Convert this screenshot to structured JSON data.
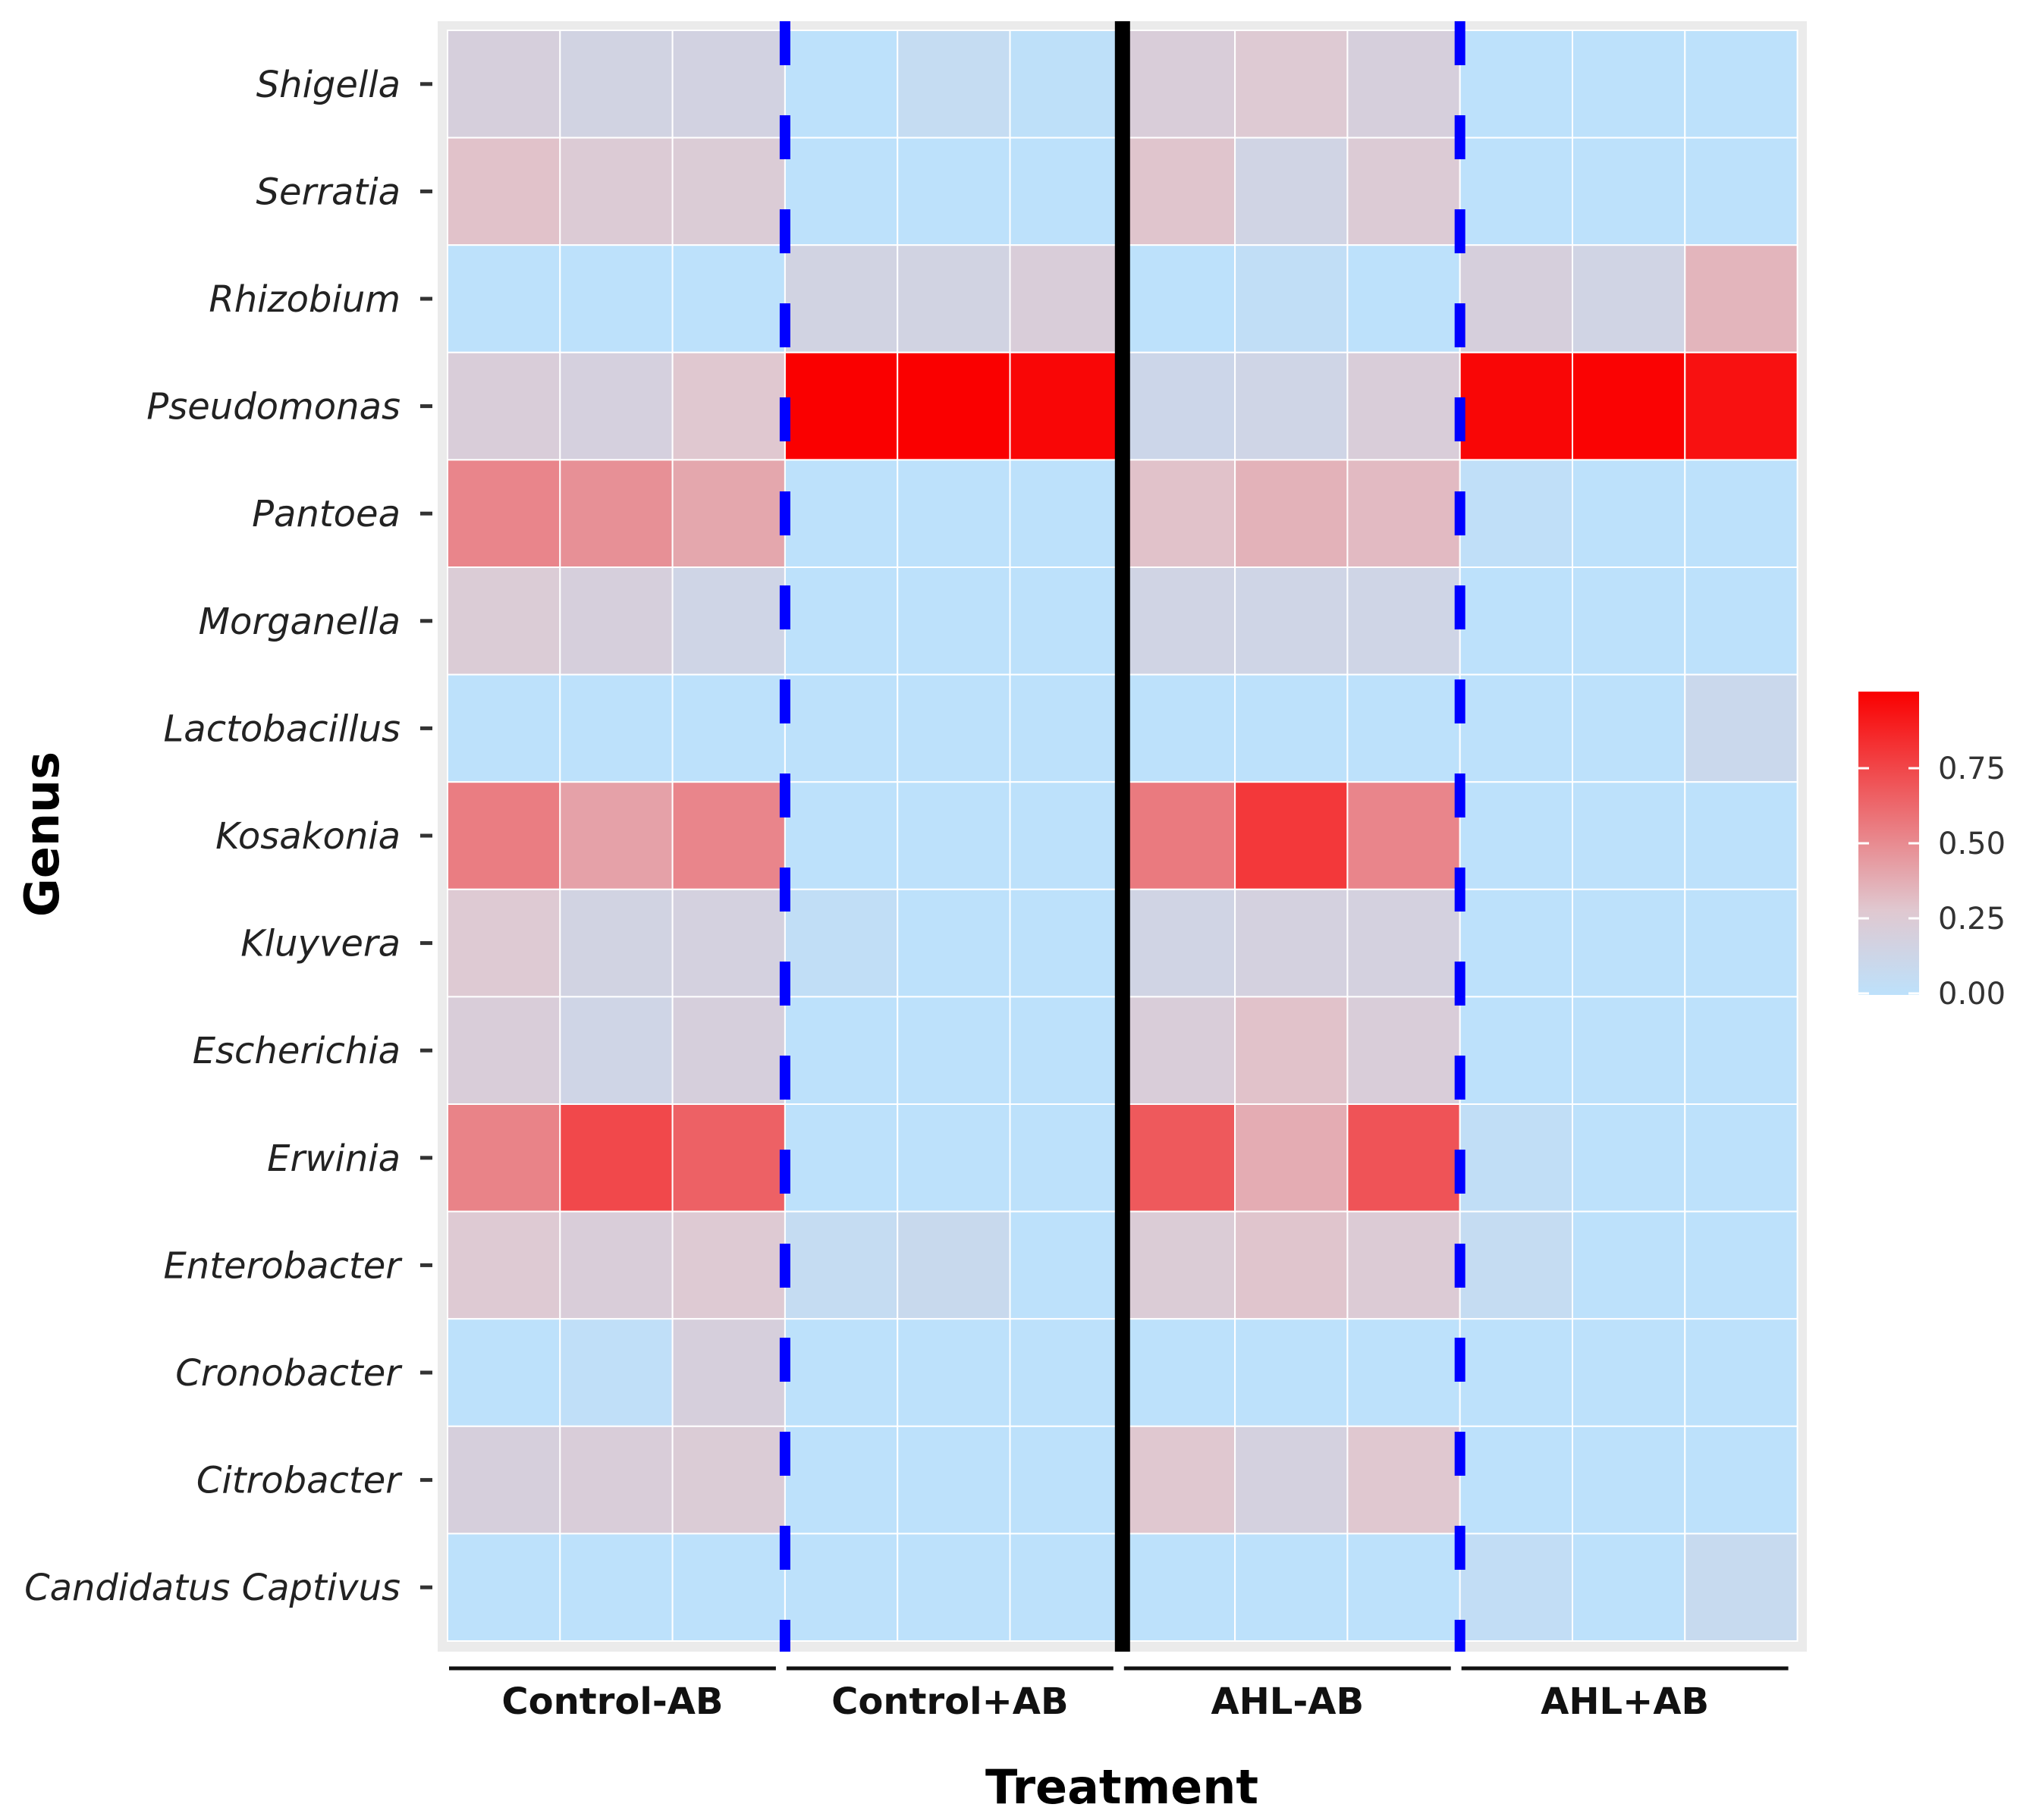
{
  "chart_data": {
    "type": "heatmap",
    "xlabel": "Treatment",
    "ylabel": "Genus",
    "groups": [
      "Control-AB",
      "Control+AB",
      "AHL-AB",
      "AHL+AB"
    ],
    "replicates_per_group": 3,
    "rows": [
      "Shigella",
      "Serratia",
      "Rhizobium",
      "Pseudomonas",
      "Pantoea",
      "Morganella",
      "Lactobacillus",
      "Kosakonia",
      "Kluyvera",
      "Escherichia",
      "Erwinia",
      "Enterobacter",
      "Cronobacter",
      "Citrobacter",
      "Candidatus Captivus"
    ],
    "values": [
      [
        0.2,
        0.16,
        0.17,
        0.0,
        0.06,
        0.01,
        0.22,
        0.26,
        0.2,
        0.0,
        0.0,
        0.0
      ],
      [
        0.3,
        0.25,
        0.24,
        0.0,
        0.0,
        0.0,
        0.29,
        0.15,
        0.25,
        0.0,
        0.0,
        0.0
      ],
      [
        0.0,
        0.0,
        0.0,
        0.16,
        0.16,
        0.22,
        0.0,
        0.03,
        0.0,
        0.2,
        0.15,
        0.35
      ],
      [
        0.22,
        0.19,
        0.28,
        1.0,
        1.0,
        0.98,
        0.12,
        0.14,
        0.22,
        0.98,
        0.99,
        0.94
      ],
      [
        0.52,
        0.48,
        0.4,
        0.0,
        0.0,
        0.0,
        0.3,
        0.36,
        0.33,
        0.02,
        0.0,
        0.0
      ],
      [
        0.24,
        0.2,
        0.14,
        0.0,
        0.0,
        0.0,
        0.15,
        0.14,
        0.14,
        0.0,
        0.0,
        0.0
      ],
      [
        0.0,
        0.0,
        0.0,
        0.0,
        0.0,
        0.0,
        0.0,
        0.0,
        0.0,
        0.0,
        0.0,
        0.1
      ],
      [
        0.55,
        0.42,
        0.52,
        0.0,
        0.0,
        0.0,
        0.56,
        0.8,
        0.52,
        0.0,
        0.0,
        0.0
      ],
      [
        0.26,
        0.16,
        0.18,
        0.03,
        0.0,
        0.0,
        0.15,
        0.18,
        0.18,
        0.0,
        0.0,
        0.0
      ],
      [
        0.22,
        0.14,
        0.2,
        0.0,
        0.0,
        0.0,
        0.22,
        0.3,
        0.22,
        0.0,
        0.0,
        0.0
      ],
      [
        0.53,
        0.74,
        0.65,
        0.0,
        0.0,
        0.0,
        0.68,
        0.38,
        0.7,
        0.03,
        0.0,
        0.0
      ],
      [
        0.26,
        0.22,
        0.26,
        0.06,
        0.09,
        0.0,
        0.24,
        0.29,
        0.25,
        0.06,
        0.0,
        0.0
      ],
      [
        0.0,
        0.02,
        0.2,
        0.0,
        0.0,
        0.0,
        0.0,
        0.0,
        0.0,
        0.0,
        0.0,
        0.0
      ],
      [
        0.2,
        0.22,
        0.24,
        0.0,
        0.0,
        0.0,
        0.28,
        0.18,
        0.28,
        0.0,
        0.0,
        0.0
      ],
      [
        0.0,
        0.0,
        0.0,
        0.0,
        0.0,
        0.0,
        0.0,
        0.0,
        0.0,
        0.04,
        0.0,
        0.08
      ]
    ],
    "colorbar": {
      "ticks": [
        0.0,
        0.25,
        0.5,
        0.75
      ],
      "tick_labels": [
        "0.00",
        "0.25",
        "0.50",
        "0.75"
      ],
      "range": [
        0,
        1
      ]
    },
    "colors": {
      "low": "#bde1fb",
      "mid": "#e0c8d0",
      "high": "#fa0000",
      "panel_bg": "#ebebeb",
      "divider_dashed": "#0000ff",
      "divider_solid": "#000000"
    },
    "dividers": [
      {
        "after_group": "Control-AB",
        "style": "dashed"
      },
      {
        "after_group": "Control+AB",
        "style": "solid"
      },
      {
        "after_group": "AHL-AB",
        "style": "dashed"
      }
    ]
  }
}
